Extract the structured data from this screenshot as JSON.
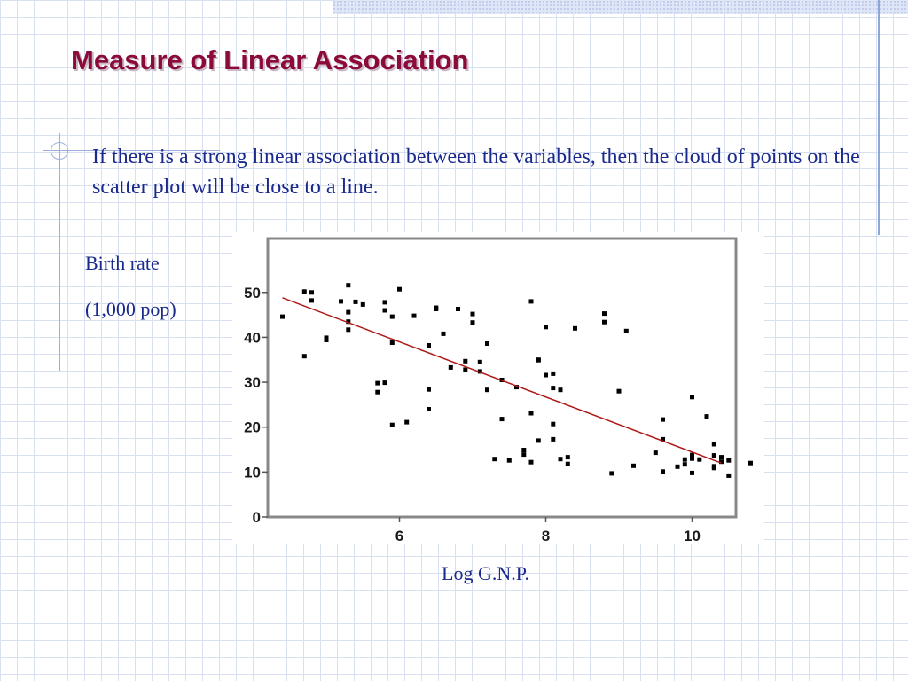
{
  "slide": {
    "title": "Measure of Linear Association",
    "bullet": "If there is a strong linear association between the variables, then the cloud of points on the scatter plot will be close to a line.",
    "ylabel_line1": "Birth rate",
    "ylabel_line2": "(1,000 pop)",
    "xlabel": "Log G.N.P."
  },
  "colors": {
    "title": "#8b0a3a",
    "body_text": "#1a2a8c",
    "points": "#000000",
    "trend_line": "#b01818"
  },
  "chart_data": {
    "type": "scatter",
    "xlim": [
      4.2,
      10.6
    ],
    "ylim": [
      0,
      62
    ],
    "xticks": [
      6,
      8,
      10
    ],
    "yticks": [
      0,
      10,
      20,
      30,
      40,
      50
    ],
    "grid": false,
    "trend_line": {
      "x": [
        4.4,
        10.4
      ],
      "y": [
        48.8,
        12
      ]
    },
    "points": [
      [
        4.4,
        44.6
      ],
      [
        4.7,
        35.8
      ],
      [
        4.7,
        50.2
      ],
      [
        4.8,
        50.0
      ],
      [
        4.8,
        48.2
      ],
      [
        5.0,
        39.9
      ],
      [
        5.0,
        39.4
      ],
      [
        5.2,
        48.0
      ],
      [
        5.3,
        43.5
      ],
      [
        5.3,
        41.7
      ],
      [
        5.3,
        51.6
      ],
      [
        5.3,
        45.6
      ],
      [
        5.4,
        47.9
      ],
      [
        5.5,
        47.3
      ],
      [
        5.7,
        27.8
      ],
      [
        5.7,
        29.8
      ],
      [
        5.8,
        47.8
      ],
      [
        5.8,
        46.0
      ],
      [
        5.8,
        29.9
      ],
      [
        5.9,
        38.8
      ],
      [
        5.9,
        44.6
      ],
      [
        5.9,
        20.5
      ],
      [
        6.0,
        50.7
      ],
      [
        6.1,
        21.1
      ],
      [
        6.2,
        44.8
      ],
      [
        6.4,
        28.4
      ],
      [
        6.4,
        24.0
      ],
      [
        6.4,
        38.2
      ],
      [
        6.5,
        46.6
      ],
      [
        6.5,
        46.3
      ],
      [
        6.6,
        40.8
      ],
      [
        6.7,
        33.3
      ],
      [
        6.8,
        46.3
      ],
      [
        6.9,
        34.7
      ],
      [
        6.9,
        32.8
      ],
      [
        7.0,
        45.2
      ],
      [
        7.0,
        43.3
      ],
      [
        7.1,
        34.5
      ],
      [
        7.1,
        32.4
      ],
      [
        7.2,
        38.6
      ],
      [
        7.2,
        28.3
      ],
      [
        7.3,
        12.9
      ],
      [
        7.4,
        21.8
      ],
      [
        7.4,
        30.5
      ],
      [
        7.5,
        12.6
      ],
      [
        7.6,
        28.9
      ],
      [
        7.7,
        13.9
      ],
      [
        7.7,
        14.9
      ],
      [
        7.8,
        23.1
      ],
      [
        7.8,
        12.2
      ],
      [
        7.8,
        48.0
      ],
      [
        7.9,
        35.0
      ],
      [
        7.9,
        34.9
      ],
      [
        7.9,
        17.0
      ],
      [
        8.0,
        31.6
      ],
      [
        8.0,
        42.3
      ],
      [
        8.1,
        20.7
      ],
      [
        8.1,
        17.3
      ],
      [
        8.1,
        31.9
      ],
      [
        8.1,
        28.7
      ],
      [
        8.2,
        12.9
      ],
      [
        8.2,
        28.3
      ],
      [
        8.3,
        11.8
      ],
      [
        8.3,
        13.3
      ],
      [
        8.4,
        42.0
      ],
      [
        8.8,
        45.3
      ],
      [
        8.8,
        43.4
      ],
      [
        8.9,
        9.7
      ],
      [
        9.0,
        28.0
      ],
      [
        9.1,
        41.4
      ],
      [
        9.2,
        11.4
      ],
      [
        9.5,
        14.3
      ],
      [
        9.6,
        21.7
      ],
      [
        9.6,
        10.1
      ],
      [
        9.6,
        17.3
      ],
      [
        9.8,
        11.2
      ],
      [
        9.9,
        11.7
      ],
      [
        9.9,
        12.8
      ],
      [
        10.0,
        13.3
      ],
      [
        10.0,
        26.7
      ],
      [
        10.0,
        13.8
      ],
      [
        10.0,
        9.8
      ],
      [
        10.0,
        13.0
      ],
      [
        10.1,
        12.8
      ],
      [
        10.2,
        22.4
      ],
      [
        10.3,
        16.2
      ],
      [
        10.3,
        13.7
      ],
      [
        10.3,
        10.9
      ],
      [
        10.3,
        11.3
      ],
      [
        10.4,
        13.3
      ],
      [
        10.4,
        12.3
      ],
      [
        10.5,
        9.2
      ],
      [
        10.5,
        12.6
      ],
      [
        10.8,
        12.0
      ]
    ]
  }
}
